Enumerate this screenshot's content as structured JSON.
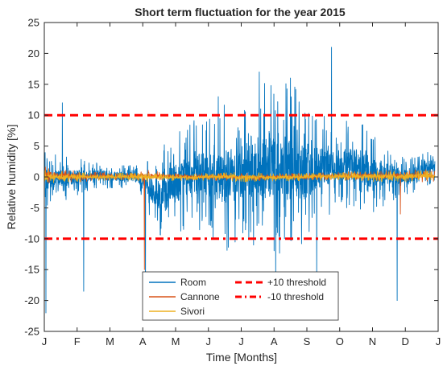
{
  "chart_data": {
    "type": "line",
    "title": "Short term fluctuation for the year 2015",
    "xlabel": "Time [Months]",
    "ylabel": "Relative humidity [%]",
    "xlim": [
      0,
      12
    ],
    "ylim": [
      -25,
      25
    ],
    "x_ticks": [
      0,
      1,
      2,
      3,
      4,
      5,
      6,
      7,
      8,
      9,
      10,
      11,
      12
    ],
    "x_tick_labels": [
      "J",
      "F",
      "M",
      "A",
      "M",
      "J",
      "J",
      "A",
      "S",
      "O",
      "N",
      "D",
      "J"
    ],
    "y_ticks": [
      -25,
      -20,
      -15,
      -10,
      -5,
      0,
      5,
      10,
      15,
      20,
      25
    ],
    "y_tick_labels": [
      "-25",
      "-20",
      "-15",
      "-10",
      "-5",
      "0",
      "5",
      "10",
      "15",
      "20",
      "25"
    ],
    "grid": false,
    "legend_position": "bottom-center",
    "legend_columns": 2,
    "series": [
      {
        "name": "Room",
        "color": "#0072BD",
        "style": "solid",
        "envelope_x": [
          0,
          0.5,
          1,
          1.5,
          2,
          2.5,
          3,
          3.5,
          4,
          4.5,
          5,
          5.5,
          6,
          6.5,
          7,
          7.5,
          8,
          8.5,
          9,
          9.5,
          10,
          10.5,
          11,
          11.5,
          11.9
        ],
        "envelope_upper": [
          4,
          3.5,
          3,
          2.5,
          2.5,
          2,
          2,
          4,
          8,
          9,
          11,
          12,
          14,
          15,
          16,
          15,
          14,
          10,
          9,
          10,
          7,
          5,
          3,
          4,
          5
        ],
        "envelope_lower": [
          -5,
          -4,
          -3,
          -2,
          -2,
          -2,
          -3,
          -11,
          -10,
          -8,
          -10,
          -12,
          -12,
          -12,
          -14,
          -13,
          -12,
          -7,
          -5,
          -6,
          -6,
          -4,
          -3,
          -2,
          -1
        ],
        "spikes_x": [
          0.05,
          0.55,
          1.2,
          3.08,
          5.3,
          6.55,
          7.05,
          7.5,
          8.3,
          8.75,
          10.75,
          11.95
        ],
        "spikes_y": [
          -22,
          12,
          -18.5,
          -18.5,
          13,
          17,
          -16,
          16,
          -16,
          21,
          -20,
          -3
        ]
      },
      {
        "name": "Cannone",
        "color": "#D95319",
        "style": "solid",
        "envelope_x": [
          0,
          1,
          2,
          3,
          4,
          5,
          6,
          7,
          8,
          9,
          10,
          11,
          11.9
        ],
        "envelope_upper": [
          1.8,
          1.0,
          0.8,
          1.2,
          0.6,
          0.6,
          0.6,
          0.6,
          0.6,
          0.8,
          1.0,
          1.2,
          1.2
        ],
        "envelope_lower": [
          -1.0,
          -0.8,
          -0.6,
          -0.8,
          -0.4,
          -0.6,
          -0.6,
          -0.6,
          -0.5,
          -0.5,
          -0.6,
          -0.8,
          -0.8
        ],
        "spikes_x": [
          3.05,
          10.85
        ],
        "spikes_y": [
          -15,
          -6
        ]
      },
      {
        "name": "Sivori",
        "color": "#EDB120",
        "style": "solid",
        "envelope_x": [
          0,
          1,
          2,
          3,
          4,
          5,
          6,
          7,
          8,
          9,
          10,
          11,
          11.9
        ],
        "envelope_upper": [
          1.2,
          0.8,
          0.6,
          0.8,
          0.4,
          0.6,
          0.8,
          0.6,
          0.6,
          0.8,
          1.0,
          1.0,
          1.0
        ],
        "envelope_lower": [
          -1.2,
          -0.8,
          -0.6,
          -0.8,
          -0.6,
          -0.6,
          -0.8,
          -0.8,
          -0.6,
          -0.6,
          -0.8,
          -0.8,
          -0.6
        ],
        "spikes_x": [],
        "spikes_y": []
      },
      {
        "name": "+10 threshold",
        "color": "#FF0000",
        "style": "dashed",
        "x": [
          0,
          13
        ],
        "y": [
          10,
          10
        ]
      },
      {
        "name": "-10 threshold",
        "color": "#FF0000",
        "style": "dash-dot",
        "x": [
          0,
          13
        ],
        "y": [
          -10,
          -10
        ]
      }
    ]
  }
}
